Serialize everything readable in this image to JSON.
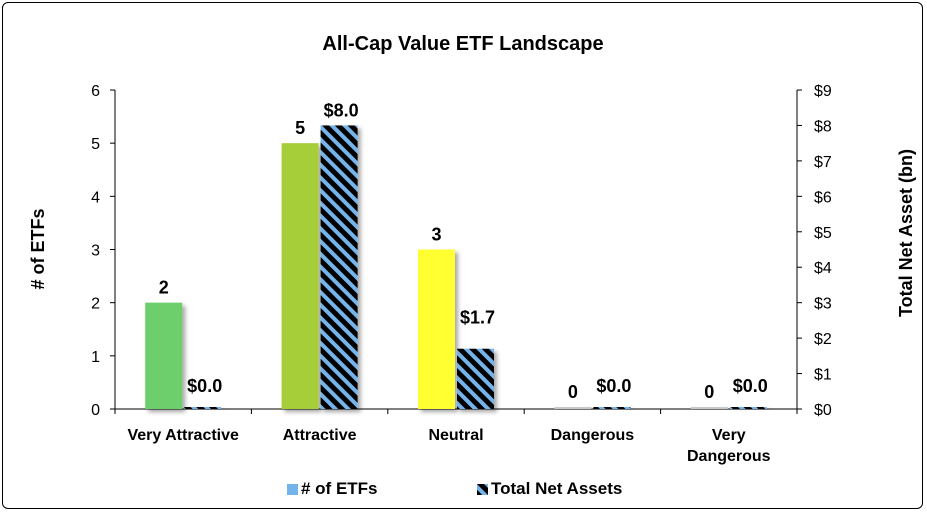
{
  "chart_data": {
    "type": "bar",
    "title": "All-Cap Value ETF Landscape",
    "xlabel": "",
    "ylabel": "# of ETFs",
    "y2label": "Total Net Asset (bn)",
    "categories": [
      "Very Attractive",
      "Attractive",
      "Neutral",
      "Dangerous",
      "Very Dangerous"
    ],
    "category_lines": [
      [
        "Very Attractive"
      ],
      [
        "Attractive"
      ],
      [
        "Neutral"
      ],
      [
        "Dangerous"
      ],
      [
        "Very",
        "Dangerous"
      ]
    ],
    "ylim": [
      0,
      6
    ],
    "y2lim": [
      0,
      9
    ],
    "yticks": [
      "0",
      "1",
      "2",
      "3",
      "4",
      "5",
      "6"
    ],
    "y2ticks": [
      "$0",
      "$1",
      "$2",
      "$3",
      "$4",
      "$5",
      "$6",
      "$7",
      "$8",
      "$9"
    ],
    "series": [
      {
        "name": "# of ETFs",
        "axis": "left",
        "values": [
          2,
          5,
          3,
          0,
          0
        ],
        "labels": [
          "2",
          "5",
          "3",
          "0",
          "0"
        ],
        "colors": [
          "#6ccf6c",
          "#a6ce39",
          "#ffff33",
          "#c8c8c8",
          "#c8c8c8"
        ],
        "legend_color": "#74b4ea"
      },
      {
        "name": "Total Net Assets",
        "axis": "right",
        "values": [
          0.0,
          8.0,
          1.7,
          0.0,
          0.0
        ],
        "labels": [
          "$0.0",
          "$8.0",
          "$1.7",
          "$0.0",
          "$0.0"
        ],
        "pattern": "black-blue-diagonal-stripes",
        "colors": [
          "#000000",
          "#74b4ea"
        ]
      }
    ],
    "legend": "bottom",
    "grid": false
  }
}
